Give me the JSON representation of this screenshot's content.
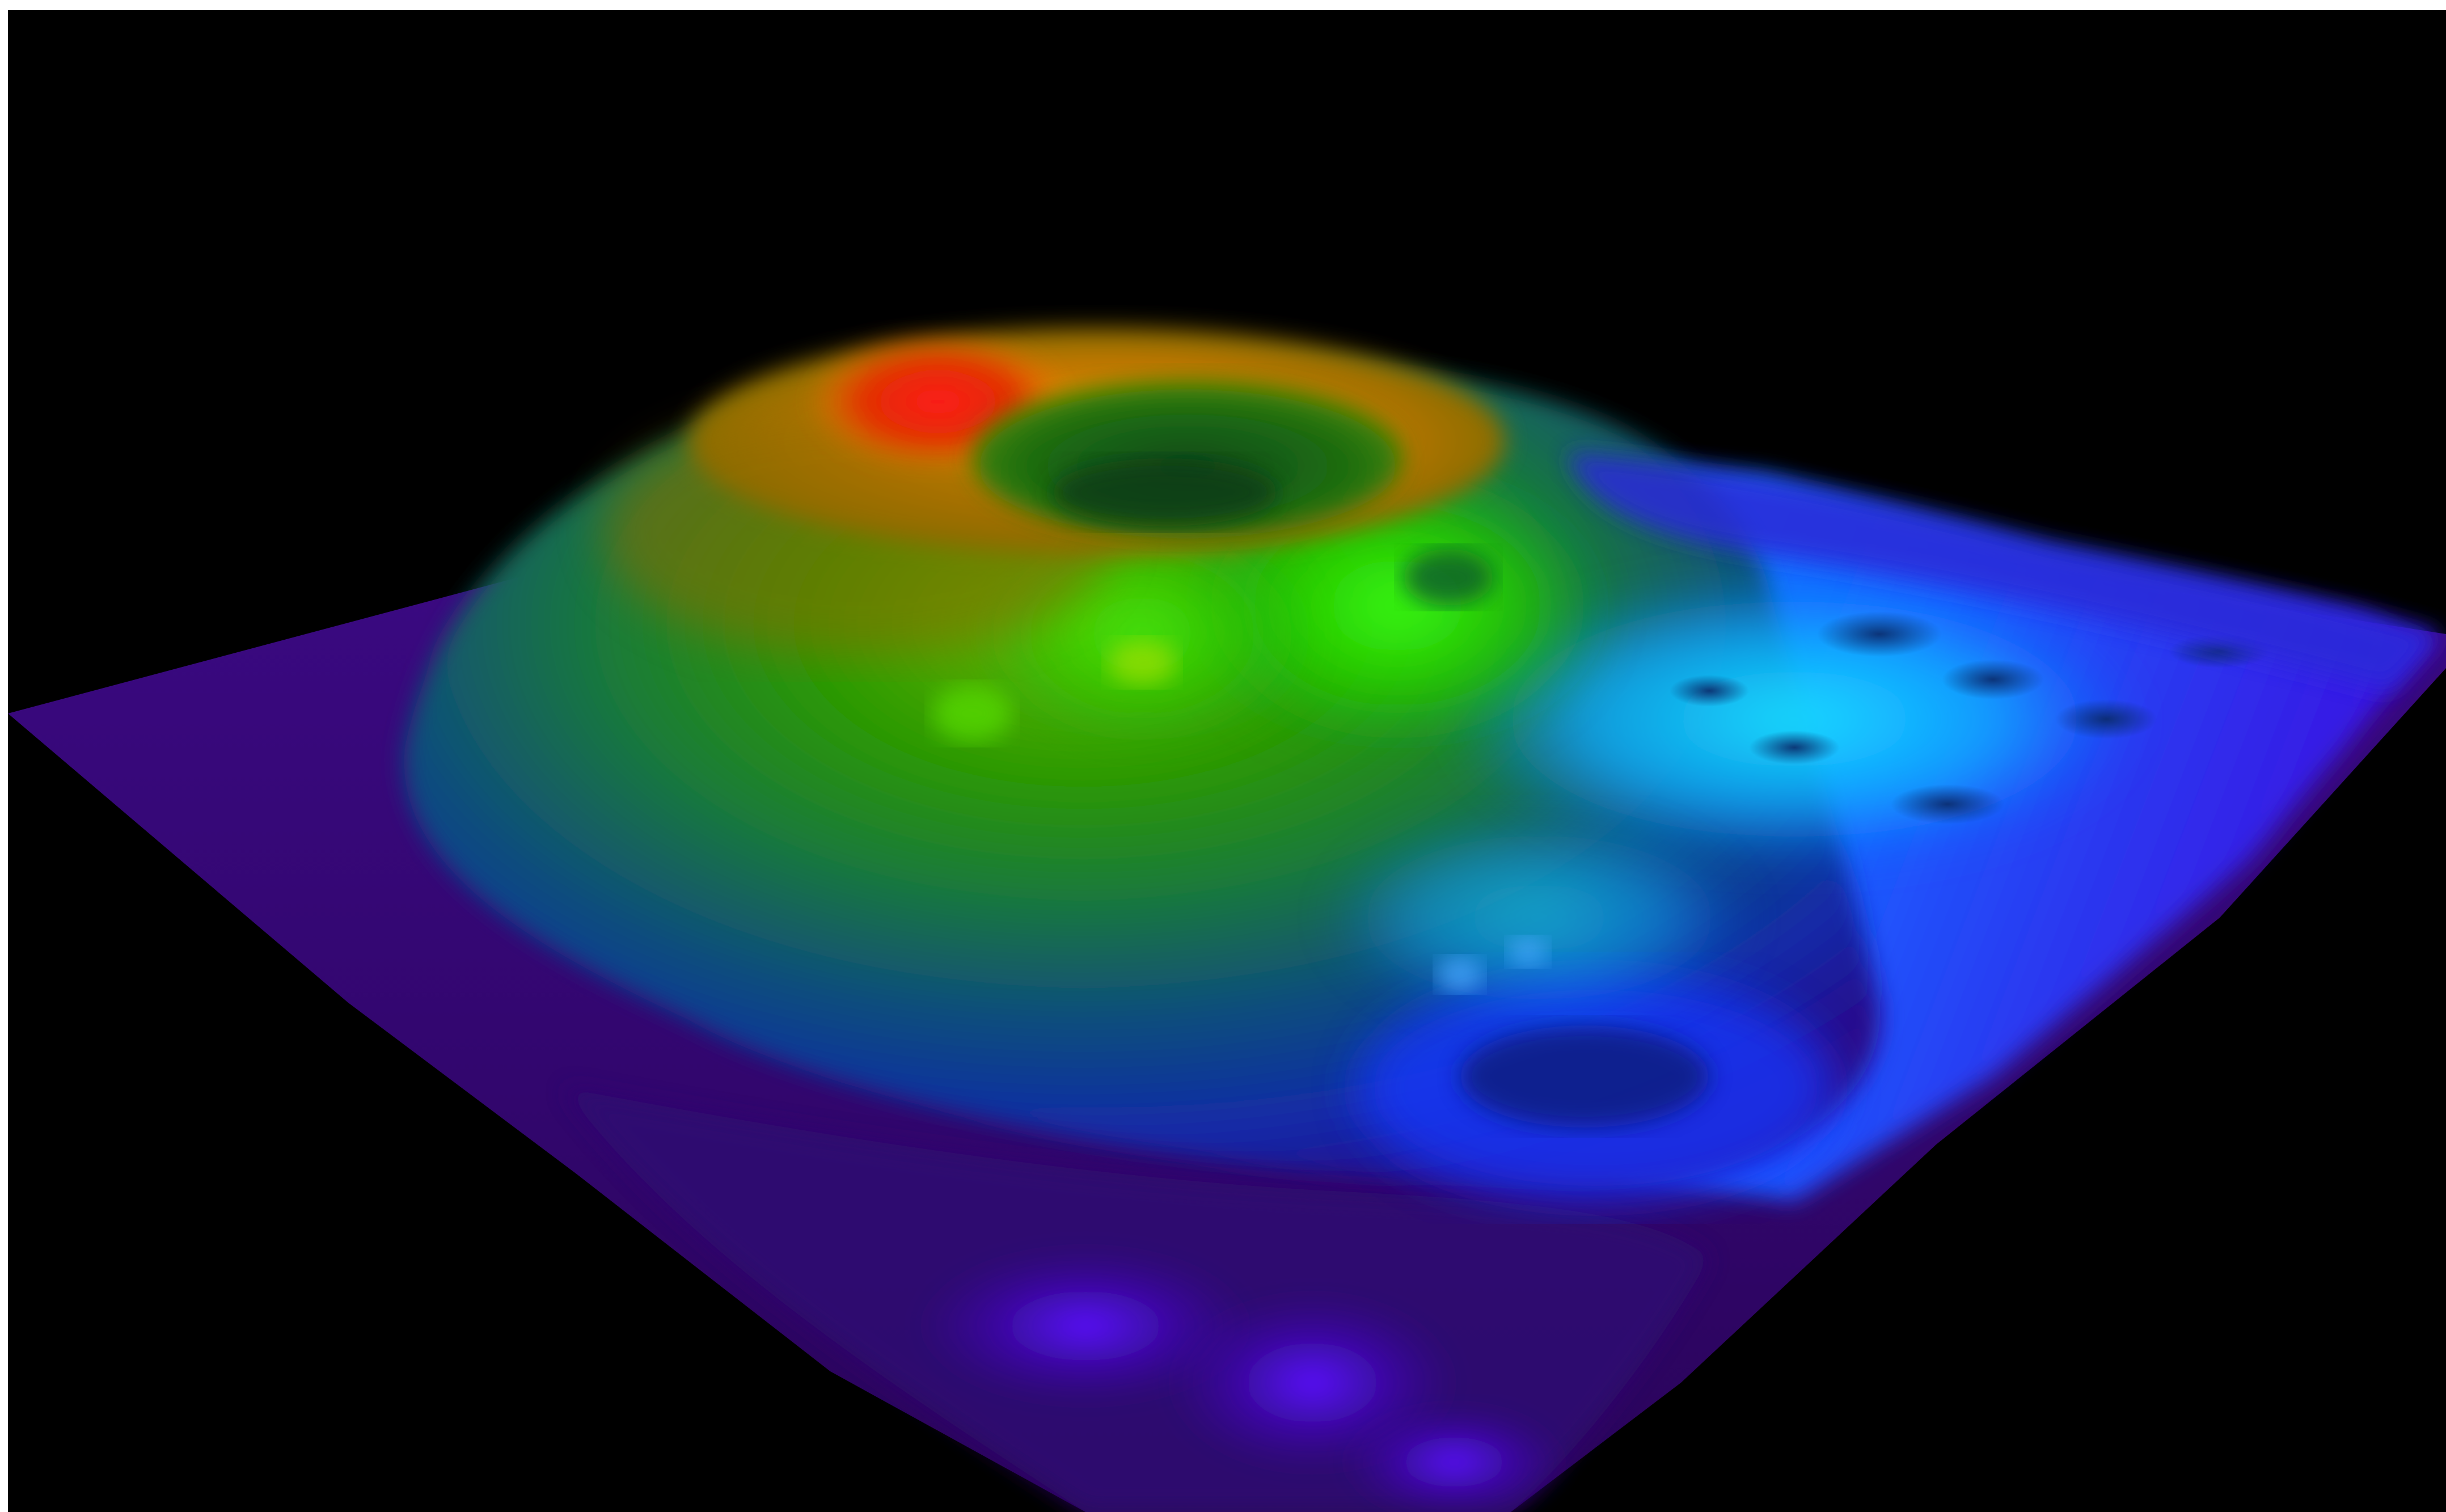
{
  "scene": {
    "subject": "3d-terrain-relief",
    "background_color": "#000000",
    "frame_color": "#ffffff",
    "colormap": [
      "#3a006e",
      "#4b00c8",
      "#1a2cff",
      "#0f8cff",
      "#16d6ff",
      "#1cff8a",
      "#1ee600",
      "#9ddc00",
      "#ffd000",
      "#ff7a00",
      "#ff1a1a"
    ]
  }
}
